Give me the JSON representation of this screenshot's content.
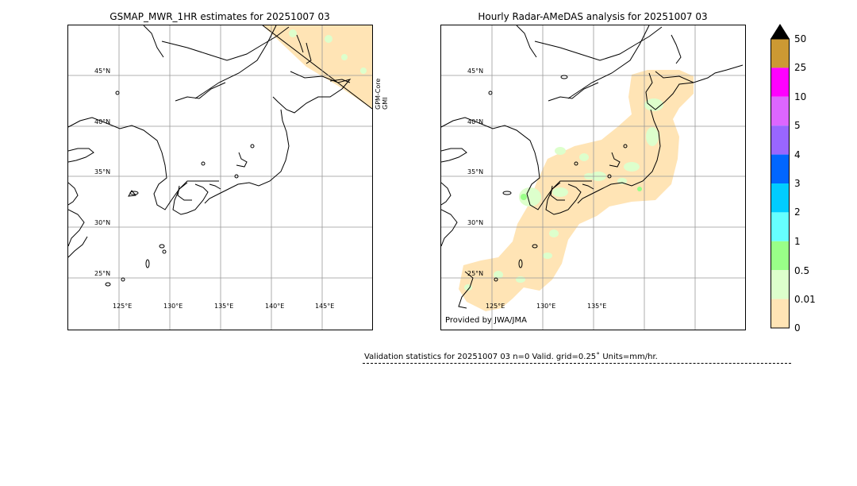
{
  "left_panel": {
    "title": "GSMAP_MWR_1HR estimates for 20251007 03",
    "lat_labels": [
      "45°N",
      "40°N",
      "35°N",
      "30°N",
      "25°N"
    ],
    "lon_labels": [
      "125°E",
      "130°E",
      "135°E",
      "140°E",
      "145°E"
    ],
    "satellite_label_1": "GPM-Core",
    "satellite_label_2": "GMI"
  },
  "right_panel": {
    "title": "Hourly Radar-AMeDAS analysis for 20251007 03",
    "lat_labels": [
      "45°N",
      "40°N",
      "35°N",
      "30°N",
      "25°N"
    ],
    "lon_labels": [
      "125°E",
      "130°E",
      "135°E"
    ],
    "credit": "Provided by JWA/JMA"
  },
  "colorbar": {
    "units_note": "mm/hr",
    "levels": [
      "50",
      "25",
      "10",
      "5",
      "4",
      "3",
      "2",
      "1",
      "0.5",
      "0.01",
      "0"
    ],
    "colors": [
      "#cc9933",
      "#ff00ff",
      "#dd66ff",
      "#9966ff",
      "#0066ff",
      "#00ccff",
      "#66ffff",
      "#99ff88",
      "#ddffcc",
      "#ffe4b5"
    ],
    "extend_color": "#000000"
  },
  "stats": {
    "text": "Validation statistics for 20251007 03  n=0 Valid. grid=0.25˚ Units=mm/hr."
  },
  "colors": {
    "rain_light": "#ffe4b5",
    "rain_lightgreen": "#ddffcc",
    "rain_green": "#99ff88",
    "coast": "#000000",
    "grid": "#999999"
  }
}
